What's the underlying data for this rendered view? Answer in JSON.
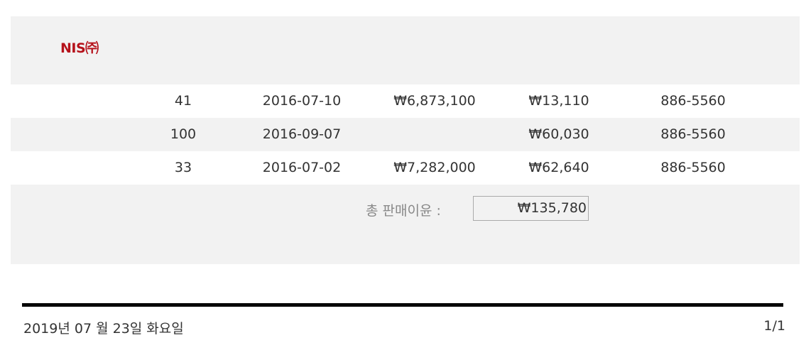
{
  "header": {
    "logo": "NIS㈜"
  },
  "rows": [
    [
      "41",
      "2016-07-10",
      "₩6,873,100",
      "₩13,110",
      "886-5560"
    ],
    [
      "100",
      "2016-09-07",
      "",
      "₩60,030",
      "886-5560"
    ],
    [
      "33",
      "2016-07-02",
      "₩7,282,000",
      "₩62,640",
      "886-5560"
    ]
  ],
  "summary": {
    "label": "총 판매이윤 :",
    "value": "₩135,780"
  },
  "footer": {
    "date": "2019년 07 월 23일 화요일",
    "page": "1/1"
  }
}
